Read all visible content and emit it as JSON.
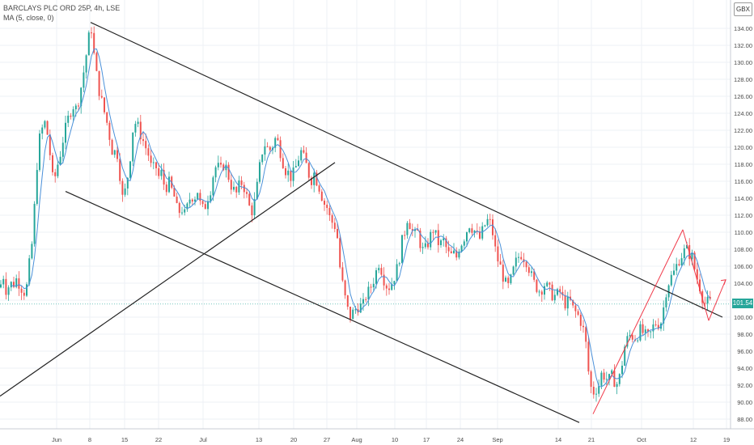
{
  "legend": {
    "symbol": "BARCLAYS PLC ORD 25P, 4h, LSE",
    "indicator": "MA (5, close, 0)"
  },
  "currency": "GBX",
  "last_price_label": "101.54",
  "colors": {
    "up": "#26a69a",
    "down": "#ef5350",
    "ma": "#4a90d9",
    "trendline": "#222222",
    "wedge": "#f03a4a",
    "grid": "#eef1f6",
    "axis_text": "#4a4a4a",
    "price_line": "#26a69a"
  },
  "chart_data": {
    "type": "candlestick",
    "title": "BARCLAYS PLC ORD 25P, 4h, LSE",
    "indicator": "MA (5, close, 0)",
    "ylim": [
      87.6,
      136.2
    ],
    "y_ticks": [
      88,
      90,
      92,
      94,
      96,
      98,
      100,
      102,
      104,
      106,
      108,
      110,
      112,
      114,
      116,
      118,
      120,
      122,
      124,
      126,
      128,
      130,
      132,
      134
    ],
    "y_tick_labels": [
      "88.00",
      "90.00",
      "92.00",
      "94.00",
      "96.00",
      "98.00",
      "100.00",
      "102.00",
      "104.00",
      "106.00",
      "108.00",
      "110.00",
      "112.00",
      "114.00",
      "116.00",
      "118.00",
      "120.00",
      "122.00",
      "124.00",
      "126.00",
      "128.00",
      "130.00",
      "132.00",
      "134.00"
    ],
    "x_tick_labels": [
      "Jun",
      "8",
      "15",
      "22",
      "Jul",
      "13",
      "20",
      "27",
      "Aug",
      "10",
      "17",
      "24",
      "Sep",
      "14",
      "21",
      "Oct",
      "12",
      "19"
    ],
    "last_price": 101.54,
    "grid": true,
    "close_series": [
      [
        0,
        103.5
      ],
      [
        4,
        105.0
      ],
      [
        8,
        103.0
      ],
      [
        12,
        104.0
      ],
      [
        16,
        103.8
      ],
      [
        20,
        104.5
      ],
      [
        24,
        104.0
      ],
      [
        28,
        103.2
      ],
      [
        32,
        102.8
      ],
      [
        36,
        106.0
      ],
      [
        40,
        109.0
      ],
      [
        44,
        115.0
      ],
      [
        47,
        120.0
      ],
      [
        50,
        121.5
      ],
      [
        55,
        123.0
      ],
      [
        60,
        121.0
      ],
      [
        63,
        118.0
      ],
      [
        66,
        115.5
      ],
      [
        70,
        117.5
      ],
      [
        74,
        119.0
      ],
      [
        78,
        121.0
      ],
      [
        82,
        122.5
      ],
      [
        86,
        124.0
      ],
      [
        90,
        125.0
      ],
      [
        94,
        124.5
      ],
      [
        98,
        126.0
      ],
      [
        102,
        128.0
      ],
      [
        106,
        130.5
      ],
      [
        110,
        133.0
      ],
      [
        113,
        134.0
      ],
      [
        116,
        131.0
      ],
      [
        120,
        128.0
      ],
      [
        124,
        126.0
      ],
      [
        128,
        124.5
      ],
      [
        132,
        123.0
      ],
      [
        136,
        121.0
      ],
      [
        140,
        119.0
      ],
      [
        144,
        120.0
      ],
      [
        148,
        117.0
      ],
      [
        152,
        113.5
      ],
      [
        156,
        115.5
      ],
      [
        160,
        118.0
      ],
      [
        164,
        122.0
      ],
      [
        168,
        123.0
      ],
      [
        172,
        122.0
      ],
      [
        176,
        121.0
      ],
      [
        180,
        120.0
      ],
      [
        184,
        119.0
      ],
      [
        188,
        117.0
      ],
      [
        192,
        118.0
      ],
      [
        196,
        116.5
      ],
      [
        200,
        117.0
      ],
      [
        204,
        115.0
      ],
      [
        208,
        116.0
      ],
      [
        212,
        115.0
      ],
      [
        216,
        114.0
      ],
      [
        220,
        112.0
      ],
      [
        224,
        113.0
      ],
      [
        228,
        112.0
      ],
      [
        232,
        113.0
      ],
      [
        236,
        114.5
      ],
      [
        240,
        114.0
      ],
      [
        244,
        115.0
      ],
      [
        248,
        113.0
      ],
      [
        252,
        112.5
      ],
      [
        256,
        114.0
      ],
      [
        260,
        115.0
      ],
      [
        264,
        117.0
      ],
      [
        268,
        118.0
      ],
      [
        272,
        117.0
      ],
      [
        276,
        118.0
      ],
      [
        280,
        117.5
      ],
      [
        284,
        116.0
      ],
      [
        288,
        115.0
      ],
      [
        292,
        114.5
      ],
      [
        296,
        115.5
      ],
      [
        300,
        116.0
      ],
      [
        304,
        114.5
      ],
      [
        308,
        113.0
      ],
      [
        312,
        112.5
      ],
      [
        316,
        114.0
      ],
      [
        320,
        117.0
      ],
      [
        324,
        119.5
      ],
      [
        328,
        120.5
      ],
      [
        332,
        119.5
      ],
      [
        336,
        120.0
      ],
      [
        340,
        121.0
      ],
      [
        344,
        120.5
      ],
      [
        348,
        119.0
      ],
      [
        352,
        117.5
      ],
      [
        356,
        117.0
      ],
      [
        360,
        116.5
      ],
      [
        364,
        117.0
      ],
      [
        368,
        118.5
      ],
      [
        372,
        119.5
      ],
      [
        376,
        118.5
      ],
      [
        380,
        117.5
      ],
      [
        384,
        116.0
      ],
      [
        388,
        117.0
      ],
      [
        392,
        116.0
      ],
      [
        396,
        115.0
      ],
      [
        400,
        113.5
      ],
      [
        404,
        113.0
      ],
      [
        408,
        111.5
      ],
      [
        412,
        111.0
      ],
      [
        416,
        110.5
      ],
      [
        420,
        106.0
      ],
      [
        424,
        103.5
      ],
      [
        428,
        101.5
      ],
      [
        432,
        100.0
      ],
      [
        436,
        100.5
      ],
      [
        440,
        101.0
      ],
      [
        444,
        101.5
      ],
      [
        448,
        101.0
      ],
      [
        452,
        102.5
      ],
      [
        456,
        103.0
      ],
      [
        460,
        104.0
      ],
      [
        464,
        105.0
      ],
      [
        468,
        106.5
      ],
      [
        472,
        105.5
      ],
      [
        476,
        104.0
      ],
      [
        480,
        103.5
      ],
      [
        484,
        104.0
      ],
      [
        488,
        105.0
      ],
      [
        492,
        106.0
      ],
      [
        496,
        108.5
      ],
      [
        500,
        110.0
      ],
      [
        504,
        112.0
      ],
      [
        508,
        110.5
      ],
      [
        512,
        109.5
      ],
      [
        516,
        110.0
      ],
      [
        520,
        108.5
      ],
      [
        524,
        107.5
      ],
      [
        528,
        108.5
      ],
      [
        532,
        109.5
      ],
      [
        536,
        110.5
      ],
      [
        540,
        109.0
      ],
      [
        544,
        108.5
      ],
      [
        548,
        109.0
      ],
      [
        552,
        108.0
      ],
      [
        556,
        107.0
      ],
      [
        560,
        107.5
      ],
      [
        564,
        107.0
      ],
      [
        568,
        108.5
      ],
      [
        572,
        109.0
      ],
      [
        576,
        110.0
      ],
      [
        580,
        111.0
      ],
      [
        584,
        110.5
      ],
      [
        588,
        110.0
      ],
      [
        592,
        109.0
      ],
      [
        596,
        110.0
      ],
      [
        600,
        111.0
      ],
      [
        604,
        111.5
      ],
      [
        608,
        110.5
      ],
      [
        612,
        108.0
      ],
      [
        616,
        106.5
      ],
      [
        620,
        105.5
      ],
      [
        624,
        104.0
      ],
      [
        628,
        103.5
      ],
      [
        632,
        104.5
      ],
      [
        636,
        106.0
      ],
      [
        640,
        107.0
      ],
      [
        644,
        107.5
      ],
      [
        648,
        107.0
      ],
      [
        652,
        106.5
      ],
      [
        656,
        105.0
      ],
      [
        660,
        104.0
      ],
      [
        664,
        103.5
      ],
      [
        668,
        103.0
      ],
      [
        672,
        104.0
      ],
      [
        676,
        103.5
      ],
      [
        680,
        103.0
      ],
      [
        684,
        102.5
      ],
      [
        688,
        102.5
      ],
      [
        692,
        103.0
      ],
      [
        696,
        102.0
      ],
      [
        700,
        101.5
      ],
      [
        704,
        102.0
      ],
      [
        708,
        101.0
      ],
      [
        712,
        100.5
      ],
      [
        716,
        100.0
      ],
      [
        720,
        99.0
      ],
      [
        724,
        97.0
      ],
      [
        728,
        93.0
      ],
      [
        732,
        91.0
      ],
      [
        736,
        91.5
      ],
      [
        740,
        92.0
      ],
      [
        744,
        93.5
      ],
      [
        748,
        93.0
      ],
      [
        752,
        92.5
      ],
      [
        756,
        93.0
      ],
      [
        760,
        92.5
      ],
      [
        764,
        92.0
      ],
      [
        768,
        94.0
      ],
      [
        772,
        96.5
      ],
      [
        776,
        97.5
      ],
      [
        780,
        98.0
      ],
      [
        784,
        97.5
      ],
      [
        788,
        98.0
      ],
      [
        792,
        98.5
      ],
      [
        796,
        98.0
      ],
      [
        800,
        97.5
      ],
      [
        804,
        98.0
      ],
      [
        808,
        99.0
      ],
      [
        812,
        99.5
      ],
      [
        816,
        99.0
      ],
      [
        820,
        101.0
      ],
      [
        824,
        103.5
      ],
      [
        828,
        104.5
      ],
      [
        832,
        105.0
      ],
      [
        836,
        106.0
      ],
      [
        840,
        107.0
      ],
      [
        844,
        107.5
      ],
      [
        848,
        108.0
      ],
      [
        852,
        107.5
      ],
      [
        856,
        107.0
      ],
      [
        860,
        105.0
      ],
      [
        864,
        104.0
      ],
      [
        868,
        102.5
      ],
      [
        872,
        101.5
      ],
      [
        876,
        101.8
      ],
      [
        880,
        101.5
      ]
    ],
    "trendlines": [
      {
        "name": "upper-downtrend",
        "from": [
          112,
          134.7
        ],
        "to": [
          893,
          100.0
        ]
      },
      {
        "name": "lower-downtrend",
        "from": [
          81,
          114.8
        ],
        "to": [
          716,
          87.6
        ]
      },
      {
        "name": "rising-support",
        "from": [
          0,
          90.7
        ],
        "to": [
          414,
          118.2
        ]
      },
      {
        "name": "wedge-rising",
        "from": [
          733,
          88.6
        ],
        "to": [
          844,
          110.3
        ]
      },
      {
        "name": "wedge-falling",
        "from": [
          844,
          110.3
        ],
        "to": [
          876,
          99.6
        ]
      },
      {
        "name": "projection-arrow",
        "from": [
          876,
          99.6
        ],
        "to": [
          897,
          104.4
        ]
      }
    ]
  }
}
